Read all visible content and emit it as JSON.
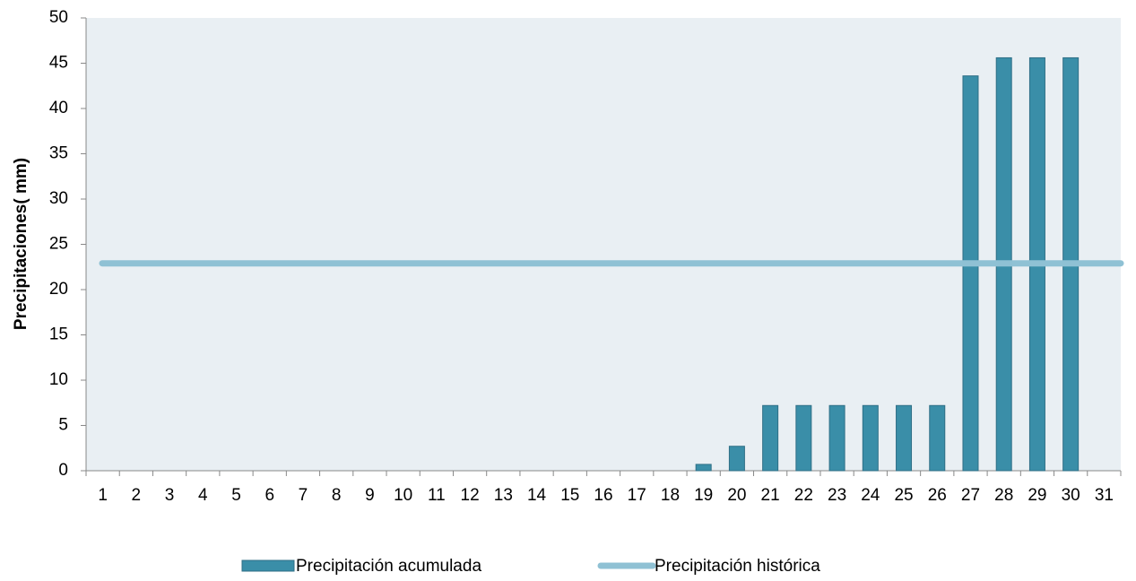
{
  "chart_data": {
    "type": "bar",
    "y_label": "Precipitaciones( mm)",
    "categories": [
      "1",
      "2",
      "3",
      "4",
      "5",
      "6",
      "7",
      "8",
      "9",
      "10",
      "11",
      "12",
      "13",
      "14",
      "15",
      "16",
      "17",
      "18",
      "19",
      "20",
      "21",
      "22",
      "23",
      "24",
      "25",
      "26",
      "27",
      "28",
      "29",
      "30",
      "31"
    ],
    "series": [
      {
        "name": "Precipitación acumulada",
        "type": "bar",
        "color": "#3a8ea8",
        "values": [
          0,
          0,
          0,
          0,
          0,
          0,
          0,
          0,
          0,
          0,
          0,
          0,
          0,
          0,
          0,
          0,
          0,
          0,
          0.7,
          2.7,
          7.2,
          7.2,
          7.2,
          7.2,
          7.2,
          7.2,
          43.6,
          45.6,
          45.6,
          45.6,
          0
        ]
      },
      {
        "name": "Precipitación histórica",
        "type": "line",
        "color": "#8fc1d4",
        "values": [
          22.9,
          22.9,
          22.9,
          22.9,
          22.9,
          22.9,
          22.9,
          22.9,
          22.9,
          22.9,
          22.9,
          22.9,
          22.9,
          22.9,
          22.9,
          22.9,
          22.9,
          22.9,
          22.9,
          22.9,
          22.9,
          22.9,
          22.9,
          22.9,
          22.9,
          22.9,
          22.9,
          22.9,
          22.9,
          22.9,
          22.9
        ]
      }
    ],
    "ylim": [
      0,
      50
    ],
    "yticks": [
      0,
      5,
      10,
      15,
      20,
      25,
      30,
      35,
      40,
      45,
      50
    ],
    "grid": false
  }
}
